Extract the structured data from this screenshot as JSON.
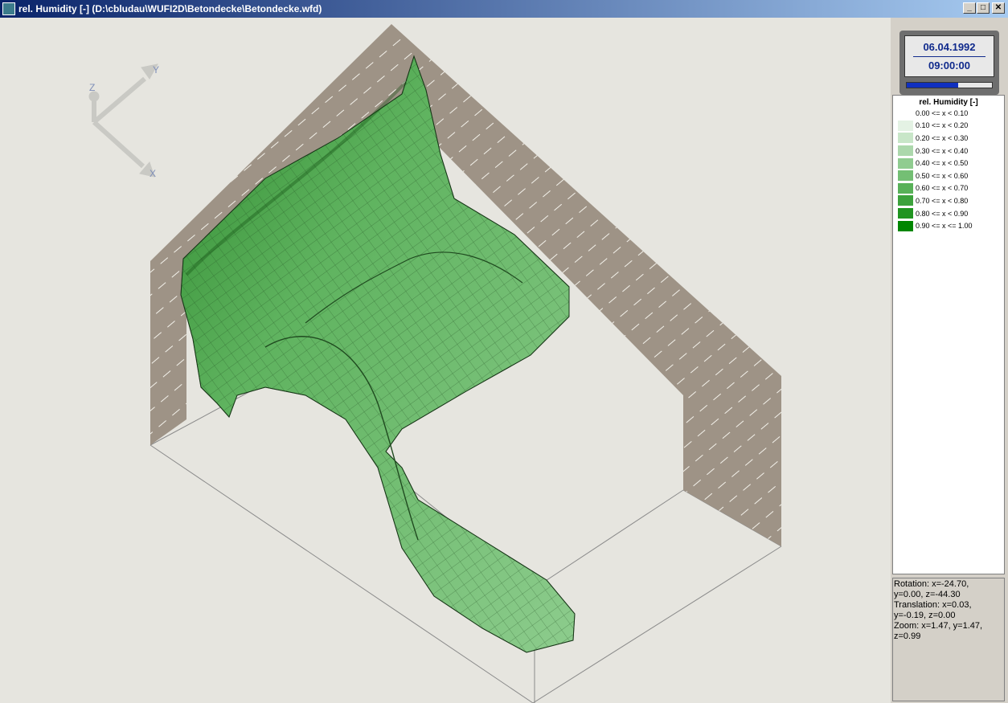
{
  "window": {
    "title": "rel. Humidity [-] (D:\\cbludau\\WUFI2D\\Betondecke\\Betondecke.wfd)",
    "minimize": "_",
    "maximize": "□",
    "close": "✕"
  },
  "axes": {
    "z": "Z",
    "y": "Y",
    "x": "X"
  },
  "clock": {
    "date": "06.04.1992",
    "time": "09:00:00",
    "progress": 0.6
  },
  "legend": {
    "title": "rel. Humidity [-]",
    "items": [
      {
        "label": "0.00 <= x < 0.10",
        "color": "#ffffff"
      },
      {
        "label": "0.10 <= x < 0.20",
        "color": "#e4f2e4"
      },
      {
        "label": "0.20 <= x < 0.30",
        "color": "#c8e6c8"
      },
      {
        "label": "0.30 <= x < 0.40",
        "color": "#acd8ac"
      },
      {
        "label": "0.40 <= x < 0.50",
        "color": "#90cc90"
      },
      {
        "label": "0.50 <= x < 0.60",
        "color": "#74bf74"
      },
      {
        "label": "0.60 <= x < 0.70",
        "color": "#58b158"
      },
      {
        "label": "0.70 <= x < 0.80",
        "color": "#3ca23c"
      },
      {
        "label": "0.80 <= x < 0.90",
        "color": "#209420"
      },
      {
        "label": "0.90 <= x <= 1.00",
        "color": "#008600"
      }
    ]
  },
  "view_info": "Rotation: x=-24.70,\ny=0.00, z=-44.30\nTranslation: x=0.03,\ny=-0.19, z=0.00\nZoom: x=1.47, y=1.47,\nz=0.99"
}
